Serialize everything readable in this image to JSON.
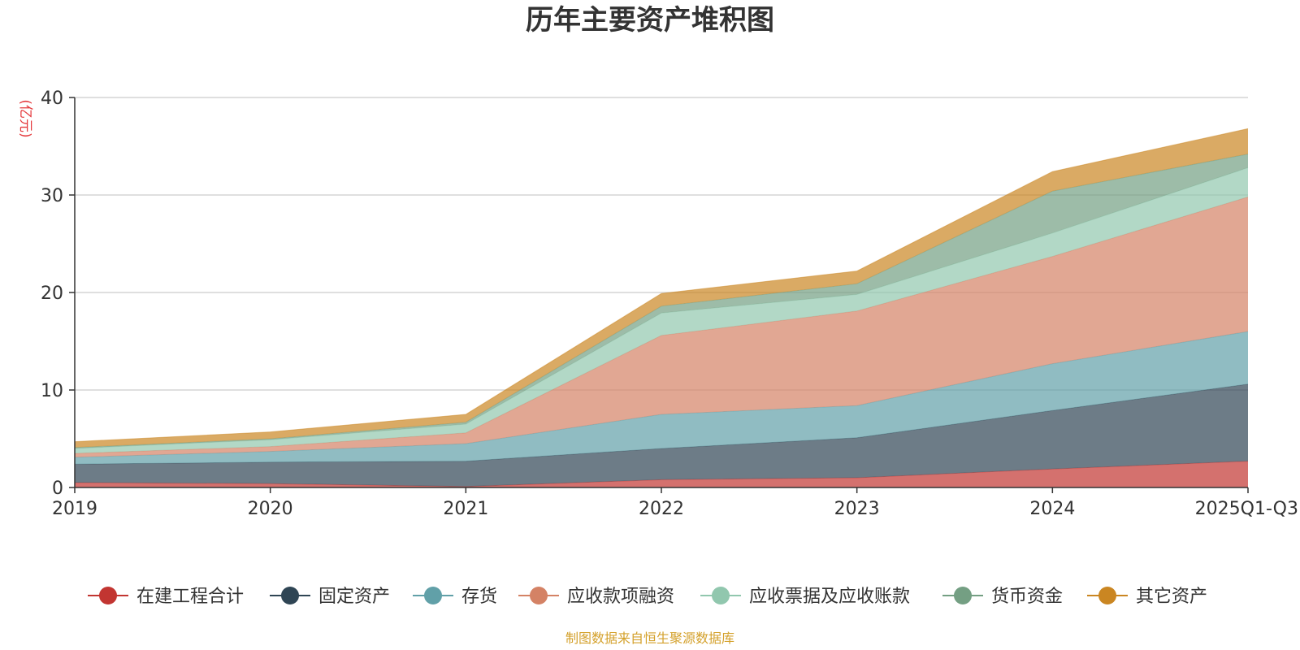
{
  "chart_data": {
    "type": "area",
    "stacked": true,
    "title": "历年主要资产堆积图",
    "ylabel": "(亿元)",
    "xlabel": "",
    "categories": [
      "2019",
      "2020",
      "2021",
      "2022",
      "2023",
      "2024",
      "2025Q1-Q3"
    ],
    "ylim": [
      0,
      40
    ],
    "yticks": [
      0,
      10,
      20,
      30,
      40
    ],
    "grid": true,
    "legend_position": "bottom",
    "series": [
      {
        "name": "在建工程合计",
        "color": "#c23531",
        "values": [
          0.5,
          0.4,
          0.1,
          0.8,
          1.0,
          1.9,
          2.7
        ]
      },
      {
        "name": "固定资产",
        "color": "#2f4554",
        "values": [
          1.9,
          2.2,
          2.6,
          3.2,
          4.1,
          6.0,
          7.9
        ]
      },
      {
        "name": "存货",
        "color": "#61a0a8",
        "values": [
          0.7,
          1.1,
          1.8,
          3.5,
          3.3,
          4.8,
          5.4
        ]
      },
      {
        "name": "应收款项融资",
        "color": "#d48265",
        "values": [
          0.4,
          0.5,
          1.1,
          8.1,
          9.7,
          11.0,
          13.8
        ]
      },
      {
        "name": "应收票据及应收账款",
        "color": "#91c7ae",
        "values": [
          0.5,
          0.7,
          0.9,
          2.3,
          1.7,
          2.4,
          3.0
        ]
      },
      {
        "name": "货币资金",
        "color": "#749f83",
        "values": [
          0.1,
          0.1,
          0.2,
          0.7,
          1.1,
          4.3,
          1.4
        ]
      },
      {
        "name": "其它资产",
        "color": "#ca8622",
        "values": [
          0.6,
          0.7,
          0.8,
          1.3,
          1.3,
          2.0,
          2.6
        ]
      }
    ],
    "source_note": "制图数据来自恒生聚源数据库"
  }
}
